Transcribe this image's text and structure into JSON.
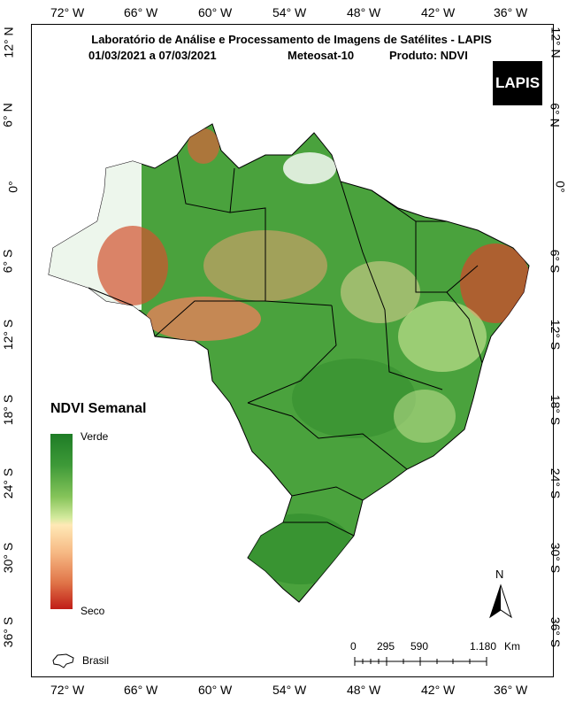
{
  "title": {
    "line1": "Laboratório de Análise e Processamento de Imagens de Satélites - LAPIS",
    "line2_dates": "01/03/2021  a  07/03/2021",
    "line2_satellite": "Meteosat-10",
    "line2_product": "Produto: NDVI"
  },
  "logo": {
    "text": "LAPIS"
  },
  "longitude_labels": [
    "72° W",
    "66° W",
    "60° W",
    "54° W",
    "48° W",
    "42° W",
    "36° W"
  ],
  "latitude_labels": [
    "12° N",
    "6° N",
    "0°",
    "6° S",
    "12° S",
    "18° S",
    "24° S",
    "30° S",
    "36° S"
  ],
  "legend": {
    "title": "NDVI Semanal",
    "top_label": "Verde",
    "bottom_label": "Seco",
    "boundary_label": "Brasil",
    "colors": [
      "#1e7c26",
      "#86c45a",
      "#ffe9b6",
      "#e07448",
      "#c01d17"
    ]
  },
  "scale_bar": {
    "ticks": [
      "0",
      "295",
      "590",
      "1.180"
    ],
    "unit": "Km"
  },
  "north_arrow": {
    "label": "N"
  }
}
